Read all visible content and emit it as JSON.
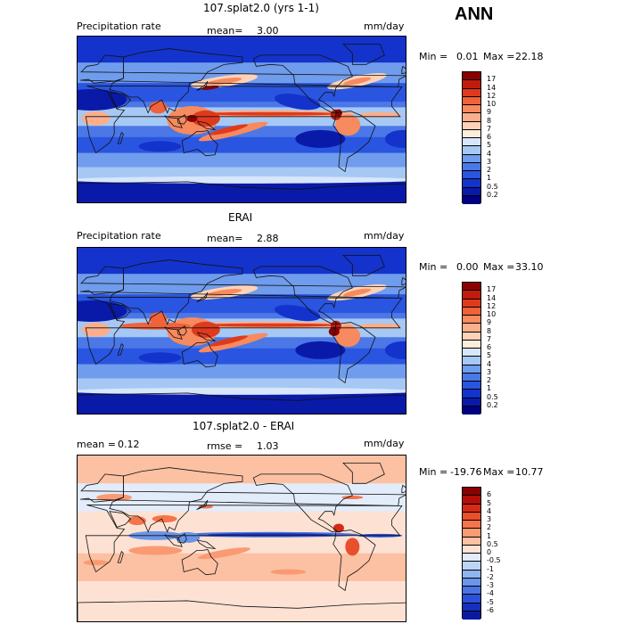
{
  "season": "ANN",
  "units": "mm/day",
  "chart_data": [
    {
      "type": "heatmap",
      "title": "107.splat2.0 (yrs 1-1)",
      "variable": "Precipitation rate",
      "mean_label": "mean=",
      "mean": "3.00",
      "units": "mm/day",
      "min_label": "Min =",
      "min": "0.01",
      "max_label": "Max =",
      "max": "22.18",
      "colorbar_levels": [
        "17",
        "14",
        "12",
        "10",
        "9",
        "8",
        "7",
        "6",
        "5",
        "4",
        "3",
        "2",
        "1",
        "0.5",
        "0.2"
      ],
      "colorbar_colors": [
        "#8b0000",
        "#c01b0c",
        "#df3a1d",
        "#f0623a",
        "#f78a5e",
        "#fbae8c",
        "#fdd2b8",
        "#fdecdc",
        "#d7e6fb",
        "#a6c8f4",
        "#6f9cec",
        "#4b78e6",
        "#2a55e0",
        "#1433cc",
        "#0a1aa8",
        "#000080"
      ]
    },
    {
      "type": "heatmap",
      "title": "ERAI",
      "variable": "Precipitation rate",
      "mean_label": "mean=",
      "mean": "2.88",
      "units": "mm/day",
      "min_label": "Min =",
      "min": "0.00",
      "max_label": "Max =",
      "max": "33.10",
      "colorbar_levels": [
        "17",
        "14",
        "12",
        "10",
        "9",
        "8",
        "7",
        "6",
        "5",
        "4",
        "3",
        "2",
        "1",
        "0.5",
        "0.2"
      ],
      "colorbar_colors": [
        "#8b0000",
        "#c01b0c",
        "#df3a1d",
        "#f0623a",
        "#f78a5e",
        "#fbae8c",
        "#fdd2b8",
        "#fdecdc",
        "#d7e6fb",
        "#a6c8f4",
        "#6f9cec",
        "#4b78e6",
        "#2a55e0",
        "#1433cc",
        "#0a1aa8",
        "#000080"
      ]
    },
    {
      "type": "heatmap",
      "title": "107.splat2.0 - ERAI",
      "mean_label": "mean =",
      "mean": "0.12",
      "rmse_label": "rmse =",
      "rmse": "1.03",
      "units": "mm/day",
      "min_label": "Min =",
      "min": "-19.76",
      "max_label": "Max =",
      "max": "10.77",
      "colorbar_levels": [
        "6",
        "5",
        "4",
        "3",
        "2",
        "1",
        "0.5",
        "0",
        "-0.5",
        "-1",
        "-2",
        "-3",
        "-4",
        "-5",
        "-6"
      ],
      "colorbar_colors": [
        "#8b0000",
        "#b30f08",
        "#d42a16",
        "#ea4f2d",
        "#f4744c",
        "#fa9a73",
        "#fcc0a3",
        "#fde2d3",
        "#e2ecfb",
        "#bcd4f6",
        "#8fb5ef",
        "#6a95e9",
        "#4a73e3",
        "#2b50d9",
        "#1530c0",
        "#0a1aa0"
      ]
    }
  ]
}
